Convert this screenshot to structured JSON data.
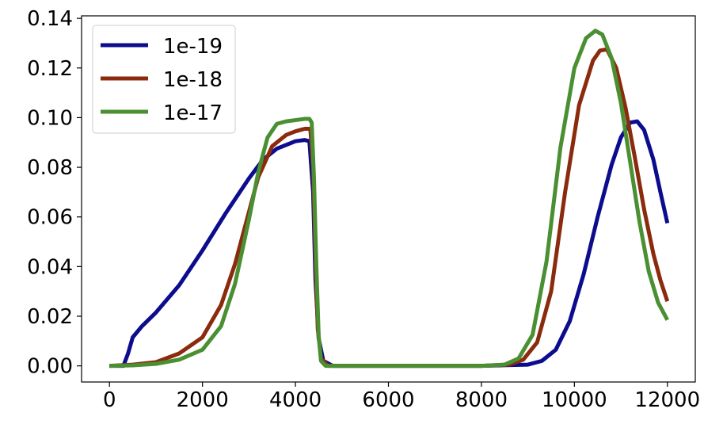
{
  "chart_data": {
    "type": "line",
    "title": "",
    "xlabel": "",
    "ylabel": "",
    "xlim": [
      -600,
      12600
    ],
    "ylim": [
      -0.0065,
      0.141
    ],
    "xticks": [
      0,
      2000,
      4000,
      6000,
      8000,
      10000,
      12000
    ],
    "xtick_labels": [
      "0",
      "2000",
      "4000",
      "6000",
      "8000",
      "10000",
      "12000"
    ],
    "yticks": [
      0.0,
      0.02,
      0.04,
      0.06,
      0.08,
      0.1,
      0.12,
      0.14
    ],
    "ytick_labels": [
      "0.00",
      "0.02",
      "0.04",
      "0.06",
      "0.08",
      "0.10",
      "0.12",
      "0.14"
    ],
    "grid": false,
    "legend_position": "top-left",
    "series": [
      {
        "name": "1e-19",
        "color": "#0c0c8e",
        "points": [
          [
            0,
            0
          ],
          [
            300,
            0
          ],
          [
            400,
            0.005
          ],
          [
            500,
            0.0115
          ],
          [
            700,
            0.016
          ],
          [
            1000,
            0.0215
          ],
          [
            1500,
            0.0325
          ],
          [
            2000,
            0.0465
          ],
          [
            2500,
            0.0615
          ],
          [
            3000,
            0.0755
          ],
          [
            3300,
            0.083
          ],
          [
            3600,
            0.0875
          ],
          [
            4000,
            0.0905
          ],
          [
            4200,
            0.091
          ],
          [
            4300,
            0.0905
          ],
          [
            4380,
            0.07
          ],
          [
            4430,
            0.035
          ],
          [
            4500,
            0.011
          ],
          [
            4600,
            0.002
          ],
          [
            4800,
            0
          ],
          [
            6000,
            0
          ],
          [
            8000,
            0
          ],
          [
            9000,
            0.0005
          ],
          [
            9300,
            0.002
          ],
          [
            9600,
            0.0065
          ],
          [
            9900,
            0.018
          ],
          [
            10200,
            0.037
          ],
          [
            10500,
            0.06
          ],
          [
            10800,
            0.081
          ],
          [
            11000,
            0.092
          ],
          [
            11200,
            0.098
          ],
          [
            11350,
            0.0985
          ],
          [
            11500,
            0.095
          ],
          [
            11700,
            0.083
          ],
          [
            11850,
            0.07
          ],
          [
            12000,
            0.0575
          ]
        ]
      },
      {
        "name": "1e-18",
        "color": "#8b2b0e",
        "points": [
          [
            0,
            0
          ],
          [
            500,
            0.0005
          ],
          [
            1000,
            0.0015
          ],
          [
            1500,
            0.005
          ],
          [
            2000,
            0.0115
          ],
          [
            2400,
            0.0245
          ],
          [
            2700,
            0.041
          ],
          [
            3000,
            0.062
          ],
          [
            3200,
            0.076
          ],
          [
            3500,
            0.0885
          ],
          [
            3800,
            0.093
          ],
          [
            4000,
            0.0945
          ],
          [
            4200,
            0.0955
          ],
          [
            4320,
            0.0955
          ],
          [
            4380,
            0.08
          ],
          [
            4430,
            0.045
          ],
          [
            4480,
            0.015
          ],
          [
            4550,
            0.003
          ],
          [
            4700,
            0
          ],
          [
            6000,
            0
          ],
          [
            8000,
            0
          ],
          [
            8600,
            0.0005
          ],
          [
            8900,
            0.0025
          ],
          [
            9200,
            0.0095
          ],
          [
            9500,
            0.03
          ],
          [
            9800,
            0.07
          ],
          [
            10100,
            0.105
          ],
          [
            10400,
            0.123
          ],
          [
            10550,
            0.127
          ],
          [
            10700,
            0.1275
          ],
          [
            10900,
            0.12
          ],
          [
            11100,
            0.104
          ],
          [
            11300,
            0.084
          ],
          [
            11500,
            0.063
          ],
          [
            11700,
            0.045
          ],
          [
            11850,
            0.0345
          ],
          [
            12000,
            0.026
          ]
        ]
      },
      {
        "name": "1e-17",
        "color": "#4a8f32",
        "points": [
          [
            0,
            0
          ],
          [
            500,
            0.0002
          ],
          [
            1000,
            0.0008
          ],
          [
            1500,
            0.0025
          ],
          [
            2000,
            0.0065
          ],
          [
            2400,
            0.016
          ],
          [
            2700,
            0.033
          ],
          [
            3000,
            0.059
          ],
          [
            3200,
            0.078
          ],
          [
            3400,
            0.092
          ],
          [
            3600,
            0.0975
          ],
          [
            3800,
            0.0985
          ],
          [
            4000,
            0.099
          ],
          [
            4200,
            0.0995
          ],
          [
            4300,
            0.0995
          ],
          [
            4350,
            0.098
          ],
          [
            4400,
            0.075
          ],
          [
            4450,
            0.04
          ],
          [
            4500,
            0.012
          ],
          [
            4550,
            0.002
          ],
          [
            4650,
            0
          ],
          [
            6000,
            0
          ],
          [
            8000,
            0
          ],
          [
            8500,
            0.0005
          ],
          [
            8800,
            0.003
          ],
          [
            9100,
            0.0125
          ],
          [
            9400,
            0.042
          ],
          [
            9700,
            0.088
          ],
          [
            10000,
            0.12
          ],
          [
            10250,
            0.132
          ],
          [
            10450,
            0.135
          ],
          [
            10600,
            0.1335
          ],
          [
            10800,
            0.124
          ],
          [
            11000,
            0.106
          ],
          [
            11200,
            0.082
          ],
          [
            11400,
            0.058
          ],
          [
            11600,
            0.038
          ],
          [
            11800,
            0.0255
          ],
          [
            12000,
            0.0185
          ]
        ]
      }
    ]
  }
}
